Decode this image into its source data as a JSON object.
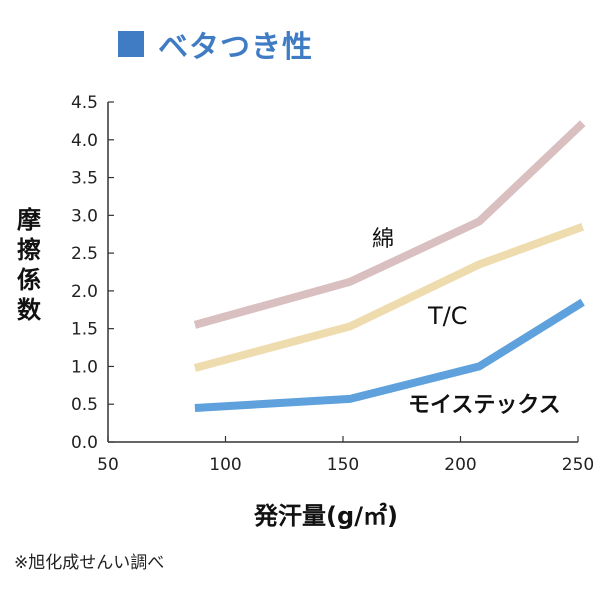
{
  "title": "ベタつき性",
  "note": "※旭化成せんい調べ",
  "colors": {
    "title": "#3f7cc4",
    "cotton": "#d9bfbf",
    "tc": "#efdcae",
    "moistex": "#5ea1dc",
    "axis": "#333333"
  },
  "chart_data": {
    "type": "line",
    "title": "ベタつき性",
    "xlabel": "発汗量(g/㎡)",
    "ylabel": "摩擦係数",
    "xlim": [
      50,
      250
    ],
    "ylim": [
      0,
      4.5
    ],
    "x_ticks": [
      "50",
      "100",
      "150",
      "200",
      "250"
    ],
    "y_ticks": [
      "0.0",
      "0.5",
      "1.0",
      "1.5",
      "2.0",
      "2.5",
      "3.0",
      "3.5",
      "4.0",
      "4.5"
    ],
    "grid": false,
    "legend": "inline labels",
    "series": [
      {
        "name": "綿",
        "key": "cotton",
        "x": [
          87,
          153,
          208,
          252
        ],
        "y": [
          1.55,
          2.12,
          2.92,
          4.22
        ]
      },
      {
        "name": "T/C",
        "key": "tc",
        "x": [
          87,
          153,
          208,
          252
        ],
        "y": [
          0.98,
          1.53,
          2.35,
          2.85
        ]
      },
      {
        "name": "モイステックス",
        "key": "moistex",
        "x": [
          87,
          153,
          208,
          252
        ],
        "y": [
          0.45,
          0.57,
          1.0,
          1.85
        ]
      }
    ]
  }
}
